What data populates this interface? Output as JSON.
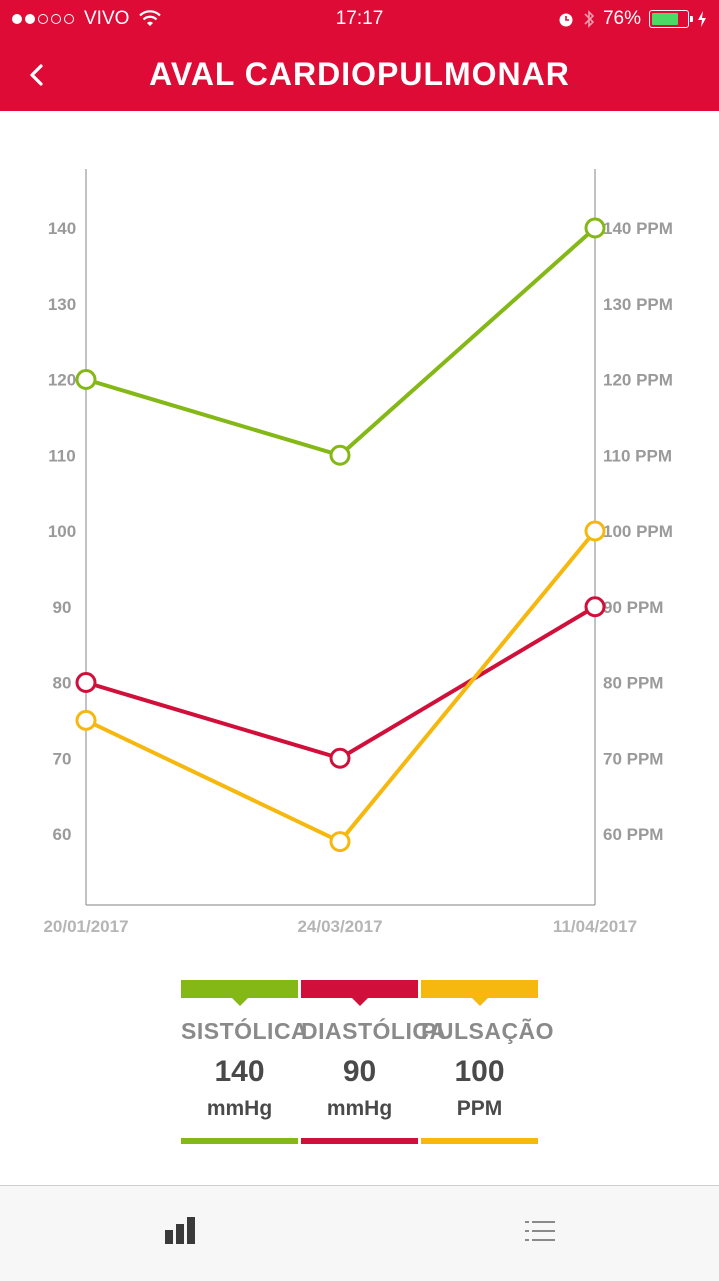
{
  "status_bar": {
    "carrier": "VIVO",
    "time": "17:17",
    "battery": "76%",
    "battery_level": 0.76
  },
  "header": {
    "title": "AVAL CARDIOPULMONAR",
    "back_icon": "chevron-left-icon"
  },
  "chart_data": {
    "type": "line",
    "x": [
      "20/01/2017",
      "24/03/2017",
      "11/04/2017"
    ],
    "series": [
      {
        "name": "SISTÓLICA",
        "axis": "left",
        "color": "#84b816",
        "values": [
          120,
          110,
          140
        ]
      },
      {
        "name": "DIASTÓLICA",
        "axis": "left",
        "color": "#d0103a",
        "values": [
          80,
          70,
          90
        ]
      },
      {
        "name": "PULSAÇÃO",
        "axis": "right",
        "color": "#f6b80f",
        "values": [
          75,
          59,
          100
        ]
      }
    ],
    "y_left_ticks": [
      "140",
      "130",
      "120",
      "110",
      "100",
      "90",
      "80",
      "70",
      "60"
    ],
    "y_right_ticks": [
      "140 PPM",
      "130 PPM",
      "120 PPM",
      "110 PPM",
      "100 PPM",
      "90 PPM",
      "80 PPM",
      "70 PPM",
      "60 PPM"
    ],
    "y_tick_values": [
      140,
      130,
      120,
      110,
      100,
      90,
      80,
      70,
      60
    ],
    "ylim": [
      51,
      148
    ],
    "grid": false
  },
  "legend": [
    {
      "label": "SISTÓLICA",
      "value": "140",
      "unit": "mmHg",
      "color": "#84b816"
    },
    {
      "label": "DIASTÓLICA",
      "value": "90",
      "unit": "mmHg",
      "color": "#d0103a"
    },
    {
      "label": "PULSAÇÃO",
      "value": "100",
      "unit": "PPM",
      "color": "#f6b80f"
    }
  ],
  "tab_bar": {
    "chart_tab_icon": "bar-chart-icon",
    "list_tab_icon": "list-icon"
  }
}
